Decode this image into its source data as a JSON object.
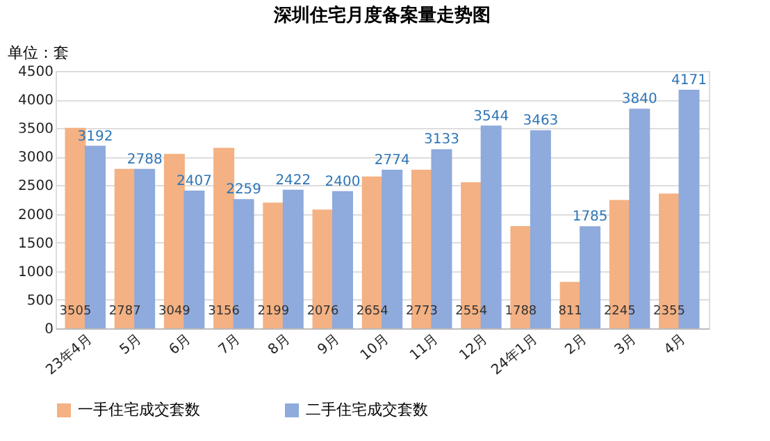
{
  "chart_data": {
    "type": "bar",
    "title": "深圳住宅月度备案量走势图",
    "ylabel": "单位：套",
    "categories": [
      "23年4月",
      "5月",
      "6月",
      "7月",
      "8月",
      "9月",
      "10月",
      "11月",
      "12月",
      "24年1月",
      "2月",
      "3月",
      "4月"
    ],
    "series": [
      {
        "name": "一手住宅成交套数",
        "color": "#f4b183",
        "values": [
          3505,
          2787,
          3049,
          3156,
          2199,
          2076,
          2654,
          2773,
          2554,
          1788,
          811,
          2245,
          2355
        ]
      },
      {
        "name": "二手住宅成交套数",
        "color": "#8faadc",
        "values": [
          3192,
          2788,
          2407,
          2259,
          2422,
          2400,
          2774,
          3133,
          3544,
          3463,
          1785,
          3840,
          4171
        ]
      }
    ],
    "ylim": [
      0,
      4500
    ],
    "yticks": [
      0,
      500,
      1000,
      1500,
      2000,
      2500,
      3000,
      3500,
      4000,
      4500
    ],
    "grid": "y",
    "legend": "bottom",
    "data_labels": true
  }
}
